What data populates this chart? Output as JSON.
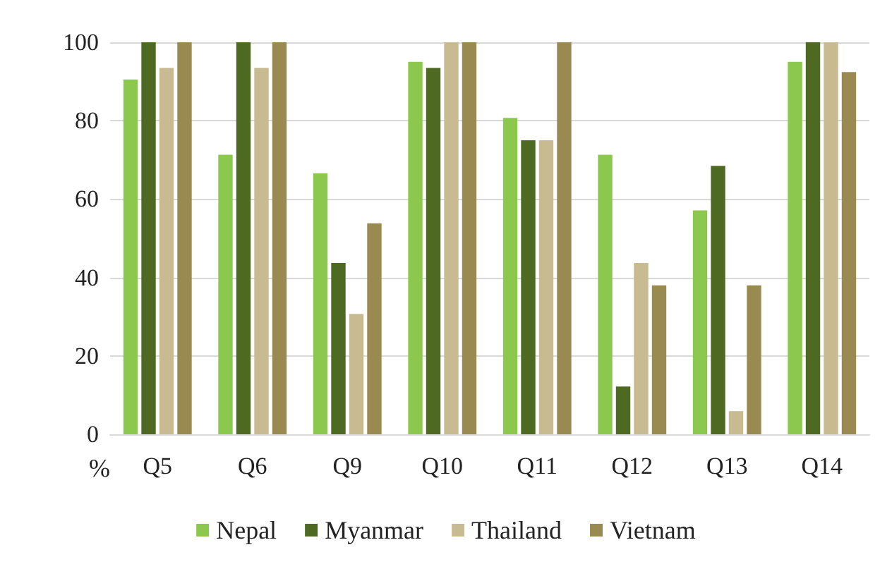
{
  "chart_data": {
    "type": "bar",
    "ylabel": "%",
    "categories": [
      "Q5",
      "Q6",
      "Q9",
      "Q10",
      "Q11",
      "Q12",
      "Q13",
      "Q14"
    ],
    "series": [
      {
        "name": "Nepal",
        "color": "#8dc84e",
        "values": [
          90.5,
          71.3,
          66.6,
          95,
          80.7,
          71.3,
          57.1,
          95
        ]
      },
      {
        "name": "Myanmar",
        "color": "#4e6a22",
        "values": [
          100,
          100,
          43.7,
          93.5,
          75,
          12.2,
          68.5,
          100
        ]
      },
      {
        "name": "Thailand",
        "color": "#c8bb92",
        "values": [
          93.5,
          93.5,
          30.7,
          100,
          75,
          43.7,
          5.9,
          100
        ]
      },
      {
        "name": "Vietnam",
        "color": "#998a52",
        "values": [
          100,
          100,
          53.8,
          100,
          100,
          38,
          38,
          92.4
        ]
      }
    ],
    "ylim": [
      0,
      100
    ],
    "yticks": [
      0,
      20,
      40,
      60,
      80,
      100
    ],
    "grid": "y",
    "legend": "bottom"
  }
}
